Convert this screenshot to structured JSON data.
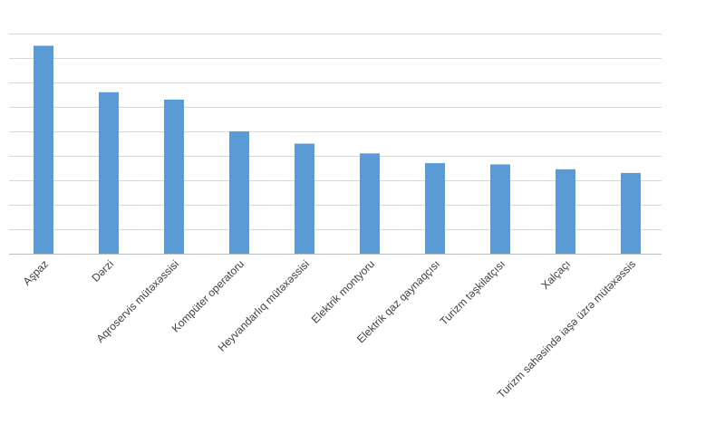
{
  "chart_data": {
    "type": "bar",
    "title": "",
    "xlabel": "",
    "ylabel": "",
    "categories": [
      "Aşpaz",
      "Dərzi",
      "Aqroservis mütəxəssisi",
      "Kompüter operatoru",
      "Heyvandarlıq mütəxəssisi",
      "Elektrik montyoru",
      "Elektrik qaz qaynaqçısı",
      "Turizm təşkilatçısı",
      "Xalçaçı",
      "Turizm sahəsində iaşə üzrə mütəxəssis"
    ],
    "series": [
      {
        "values": [
          8.5,
          6.6,
          6.3,
          5.0,
          4.5,
          4.1,
          3.7,
          3.65,
          3.45,
          3.3
        ]
      }
    ],
    "ylim": [
      0,
      9
    ],
    "y_gridlines": [
      1,
      2,
      3,
      4,
      5,
      6,
      7,
      8,
      9
    ],
    "y_tick_labels_visible": false,
    "grid": true,
    "legend": "none",
    "bar_color": "#5b9bd5",
    "grid_color": "#d9d9d9"
  }
}
